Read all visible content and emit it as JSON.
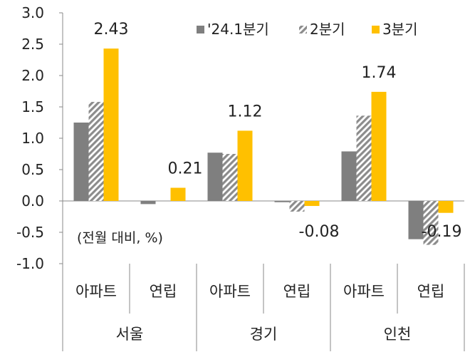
{
  "chart_data": {
    "type": "bar",
    "note": "(전월 대비, %)",
    "ylim": [
      -1.0,
      3.0
    ],
    "yticks": [
      "3.0",
      "2.5",
      "2.0",
      "1.5",
      "1.0",
      "0.5",
      "0.0",
      "-0.5",
      "-1.0"
    ],
    "groups": [
      {
        "name": "서울",
        "categories": [
          "아파트",
          "연립"
        ]
      },
      {
        "name": "경기",
        "categories": [
          "아파트",
          "연립"
        ]
      },
      {
        "name": "인천",
        "categories": [
          "아파트",
          "연립"
        ]
      }
    ],
    "series": [
      {
        "name": "'24.1분기",
        "color": "#7f7f7f",
        "pattern": "solid",
        "values": [
          1.25,
          -0.05,
          0.77,
          -0.02,
          0.79,
          -0.61
        ]
      },
      {
        "name": "2분기",
        "color": "#9e9e9e",
        "pattern": "hatch",
        "values": [
          1.58,
          0.0,
          0.75,
          -0.17,
          1.36,
          -0.7
        ]
      },
      {
        "name": "3분기",
        "color": "#ffc000",
        "pattern": "solid",
        "values": [
          2.43,
          0.21,
          1.12,
          -0.08,
          1.74,
          -0.19
        ]
      }
    ],
    "data_labels": [
      {
        "series": 2,
        "index": 0,
        "text": "2.43"
      },
      {
        "series": 2,
        "index": 1,
        "text": "0.21"
      },
      {
        "series": 2,
        "index": 2,
        "text": "1.12"
      },
      {
        "series": 2,
        "index": 3,
        "text": "-0.08"
      },
      {
        "series": 2,
        "index": 4,
        "text": "1.74"
      },
      {
        "series": 2,
        "index": 5,
        "text": "-0.19"
      }
    ],
    "legend": "top-right",
    "grid": false
  }
}
